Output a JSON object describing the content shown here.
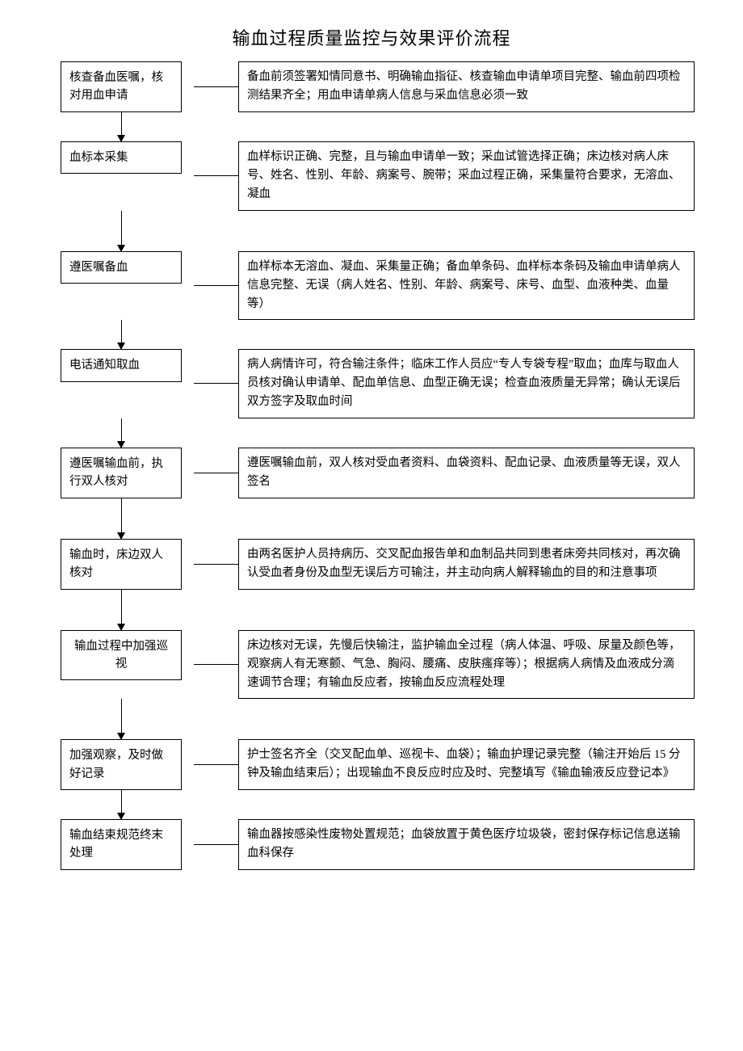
{
  "title": "输血过程质量监控与效果评价流程",
  "flowchart": {
    "type": "flowchart",
    "border_color": "#000000",
    "background_color": "#ffffff",
    "font_family": "SimSun",
    "title_fontsize": 22,
    "body_fontsize": 14.5,
    "line_height": 1.6,
    "step_box_width": 150,
    "gap_between_steps": 36,
    "arrow_color": "#000000",
    "steps": [
      {
        "step": "核查备血医嘱，核对用血申请",
        "desc": "备血前须签署知情同意书、明确输血指征、核查输血申请单项目完整、输血前四项检测结果齐全；用血申请单病人信息与采血信息必须一致"
      },
      {
        "step": "血标本采集",
        "desc": "血样标识正确、完整，且与输血申请单一致；采血试管选择正确；床边核对病人床号、姓名、性别、年龄、病案号、腕带；采血过程正确，采集量符合要求，无溶血、凝血"
      },
      {
        "step": "遵医嘱备血",
        "desc": "血样标本无溶血、凝血、采集量正确；备血单条码、血样标本条码及输血申请单病人信息完整、无误（病人姓名、性别、年龄、病案号、床号、血型、血液种类、血量等）"
      },
      {
        "step": "电话通知取血",
        "desc": "病人病情许可，符合输注条件；临床工作人员应“专人专袋专程”取血；血库与取血人员核对确认申请单、配血单信息、血型正确无误；检查血液质量无异常；确认无误后双方签字及取血时间"
      },
      {
        "step": "遵医嘱输血前，执行双人核对",
        "desc": "遵医嘱输血前，双人核对受血者资料、血袋资料、配血记录、血液质量等无误，双人签名"
      },
      {
        "step": "输血时，床边双人核对",
        "desc": "由两名医护人员持病历、交叉配血报告单和血制品共同到患者床旁共同核对，再次确认受血者身份及血型无误后方可输注，并主动向病人解释输血的目的和注意事项"
      },
      {
        "step": "输血过程中加强巡视",
        "desc": "床边核对无误，先慢后快输注，监护输血全过程（病人体温、呼吸、尿量及颜色等，观察病人有无寒颤、气急、胸闷、腰痛、皮肤瘙痒等）；根据病人病情及血液成分滴速调节合理；有输血反应者，按输血反应流程处理"
      },
      {
        "step": "加强观察，及时做好记录",
        "desc": "护士签名齐全（交叉配血单、巡视卡、血袋）；输血护理记录完整（输注开始后 15 分钟及输血结束后）；出现输血不良反应时应及时、完整填写《输血输液反应登记本》"
      },
      {
        "step": "输血结束规范终末处理",
        "desc": "输血器按感染性废物处置规范；血袋放置于黄色医疗垃圾袋，密封保存标记信息送输血科保存"
      }
    ]
  }
}
